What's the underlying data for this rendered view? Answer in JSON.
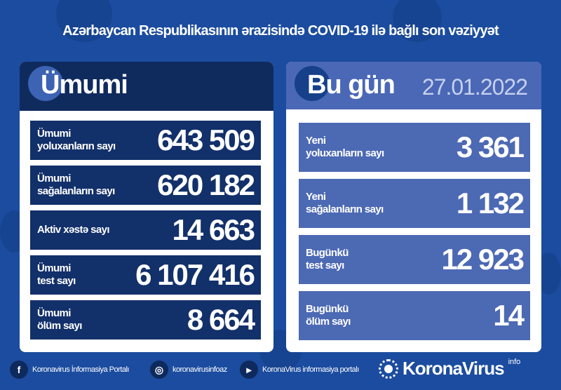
{
  "title": "Azərbaycan Respublikasının ərazisində COVID-19 ilə bağlı son vəziyyət",
  "colors": {
    "background": "#1b4c9f",
    "left_header": "#0f2b5e",
    "left_rows": "#12306a",
    "right_header": "#4a68b6",
    "right_rows": "#4c69b4"
  },
  "left": {
    "header": "Ümumi",
    "rows": [
      {
        "label1": "Ümumi",
        "label2": "yoluxanların sayı",
        "value": "643 509"
      },
      {
        "label1": "Ümumi",
        "label2": "sağalanların sayı",
        "value": "620 182"
      },
      {
        "label1": "Aktiv xəstə sayı",
        "label2": "",
        "value": "14 663"
      },
      {
        "label1": "Ümumi",
        "label2": "test sayı",
        "value": "6 107 416"
      },
      {
        "label1": "Ümumi",
        "label2": "ölüm sayı",
        "value": "8 664"
      }
    ]
  },
  "right": {
    "header": "Bu gün",
    "date": "27.01.2022",
    "rows": [
      {
        "label1": "Yeni",
        "label2": "yoluxanların sayı",
        "value": "3 361"
      },
      {
        "label1": "Yeni",
        "label2": "sağalanların sayı",
        "value": "1 132"
      },
      {
        "label1": "Bugünkü",
        "label2": "test sayı",
        "value": "12 923"
      },
      {
        "label1": "Bugünkü",
        "label2": "ölüm sayı",
        "value": "14"
      }
    ]
  },
  "footer": {
    "facebook": "Koronavirus İnformasiya Portalı",
    "instagram": "koronavirusinfoaz",
    "youtube": "KoronaVirus informasiya portalı",
    "logo": "KoronaVirus",
    "logo_sup": "info"
  }
}
